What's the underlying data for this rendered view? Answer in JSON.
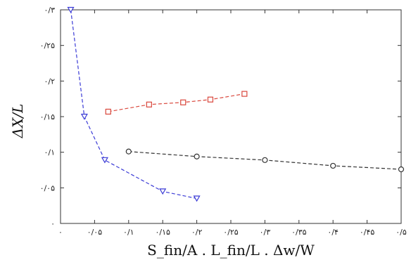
{
  "chart_data": {
    "type": "line",
    "xlabel": "S_fin/A . L_fin/L . Δw/W",
    "ylabel": "ΔX/L",
    "xlim": [
      0,
      0.5
    ],
    "ylim": [
      0,
      0.3
    ],
    "x_ticks": [
      {
        "value": 0,
        "label": "۰"
      },
      {
        "value": 0.05,
        "label": "۰/۰۵"
      },
      {
        "value": 0.1,
        "label": "۰/۱"
      },
      {
        "value": 0.15,
        "label": "۰/۱۵"
      },
      {
        "value": 0.2,
        "label": "۰/۲"
      },
      {
        "value": 0.25,
        "label": "۰/۲۵"
      },
      {
        "value": 0.3,
        "label": "۰/۳"
      },
      {
        "value": 0.35,
        "label": "۰/۳۵"
      },
      {
        "value": 0.4,
        "label": "۰/۴"
      },
      {
        "value": 0.45,
        "label": "۰/۴۵"
      },
      {
        "value": 0.5,
        "label": "۰/۵"
      }
    ],
    "y_ticks": [
      {
        "value": 0,
        "label": "۰"
      },
      {
        "value": 0.05,
        "label": "۰/۰۵"
      },
      {
        "value": 0.1,
        "label": "۰/۱"
      },
      {
        "value": 0.15,
        "label": "۰/۱۵"
      },
      {
        "value": 0.2,
        "label": "۰/۲"
      },
      {
        "value": 0.25,
        "label": "۰/۲۵"
      },
      {
        "value": 0.3,
        "label": "۰/۳"
      }
    ],
    "grid": false,
    "series": [
      {
        "marker": "triangle-down",
        "color": "#3b3bd6",
        "x": [
          0.015,
          0.035,
          0.065,
          0.15,
          0.2
        ],
        "y": [
          0.3,
          0.15,
          0.089,
          0.045,
          0.035
        ]
      },
      {
        "marker": "square",
        "color": "#d9463b",
        "x": [
          0.07,
          0.13,
          0.18,
          0.22,
          0.27
        ],
        "y": [
          0.157,
          0.167,
          0.17,
          0.174,
          0.182
        ]
      },
      {
        "marker": "circle",
        "color": "#333333",
        "x": [
          0.1,
          0.2,
          0.3,
          0.4,
          0.5
        ],
        "y": [
          0.101,
          0.094,
          0.089,
          0.081,
          0.076
        ]
      }
    ]
  }
}
